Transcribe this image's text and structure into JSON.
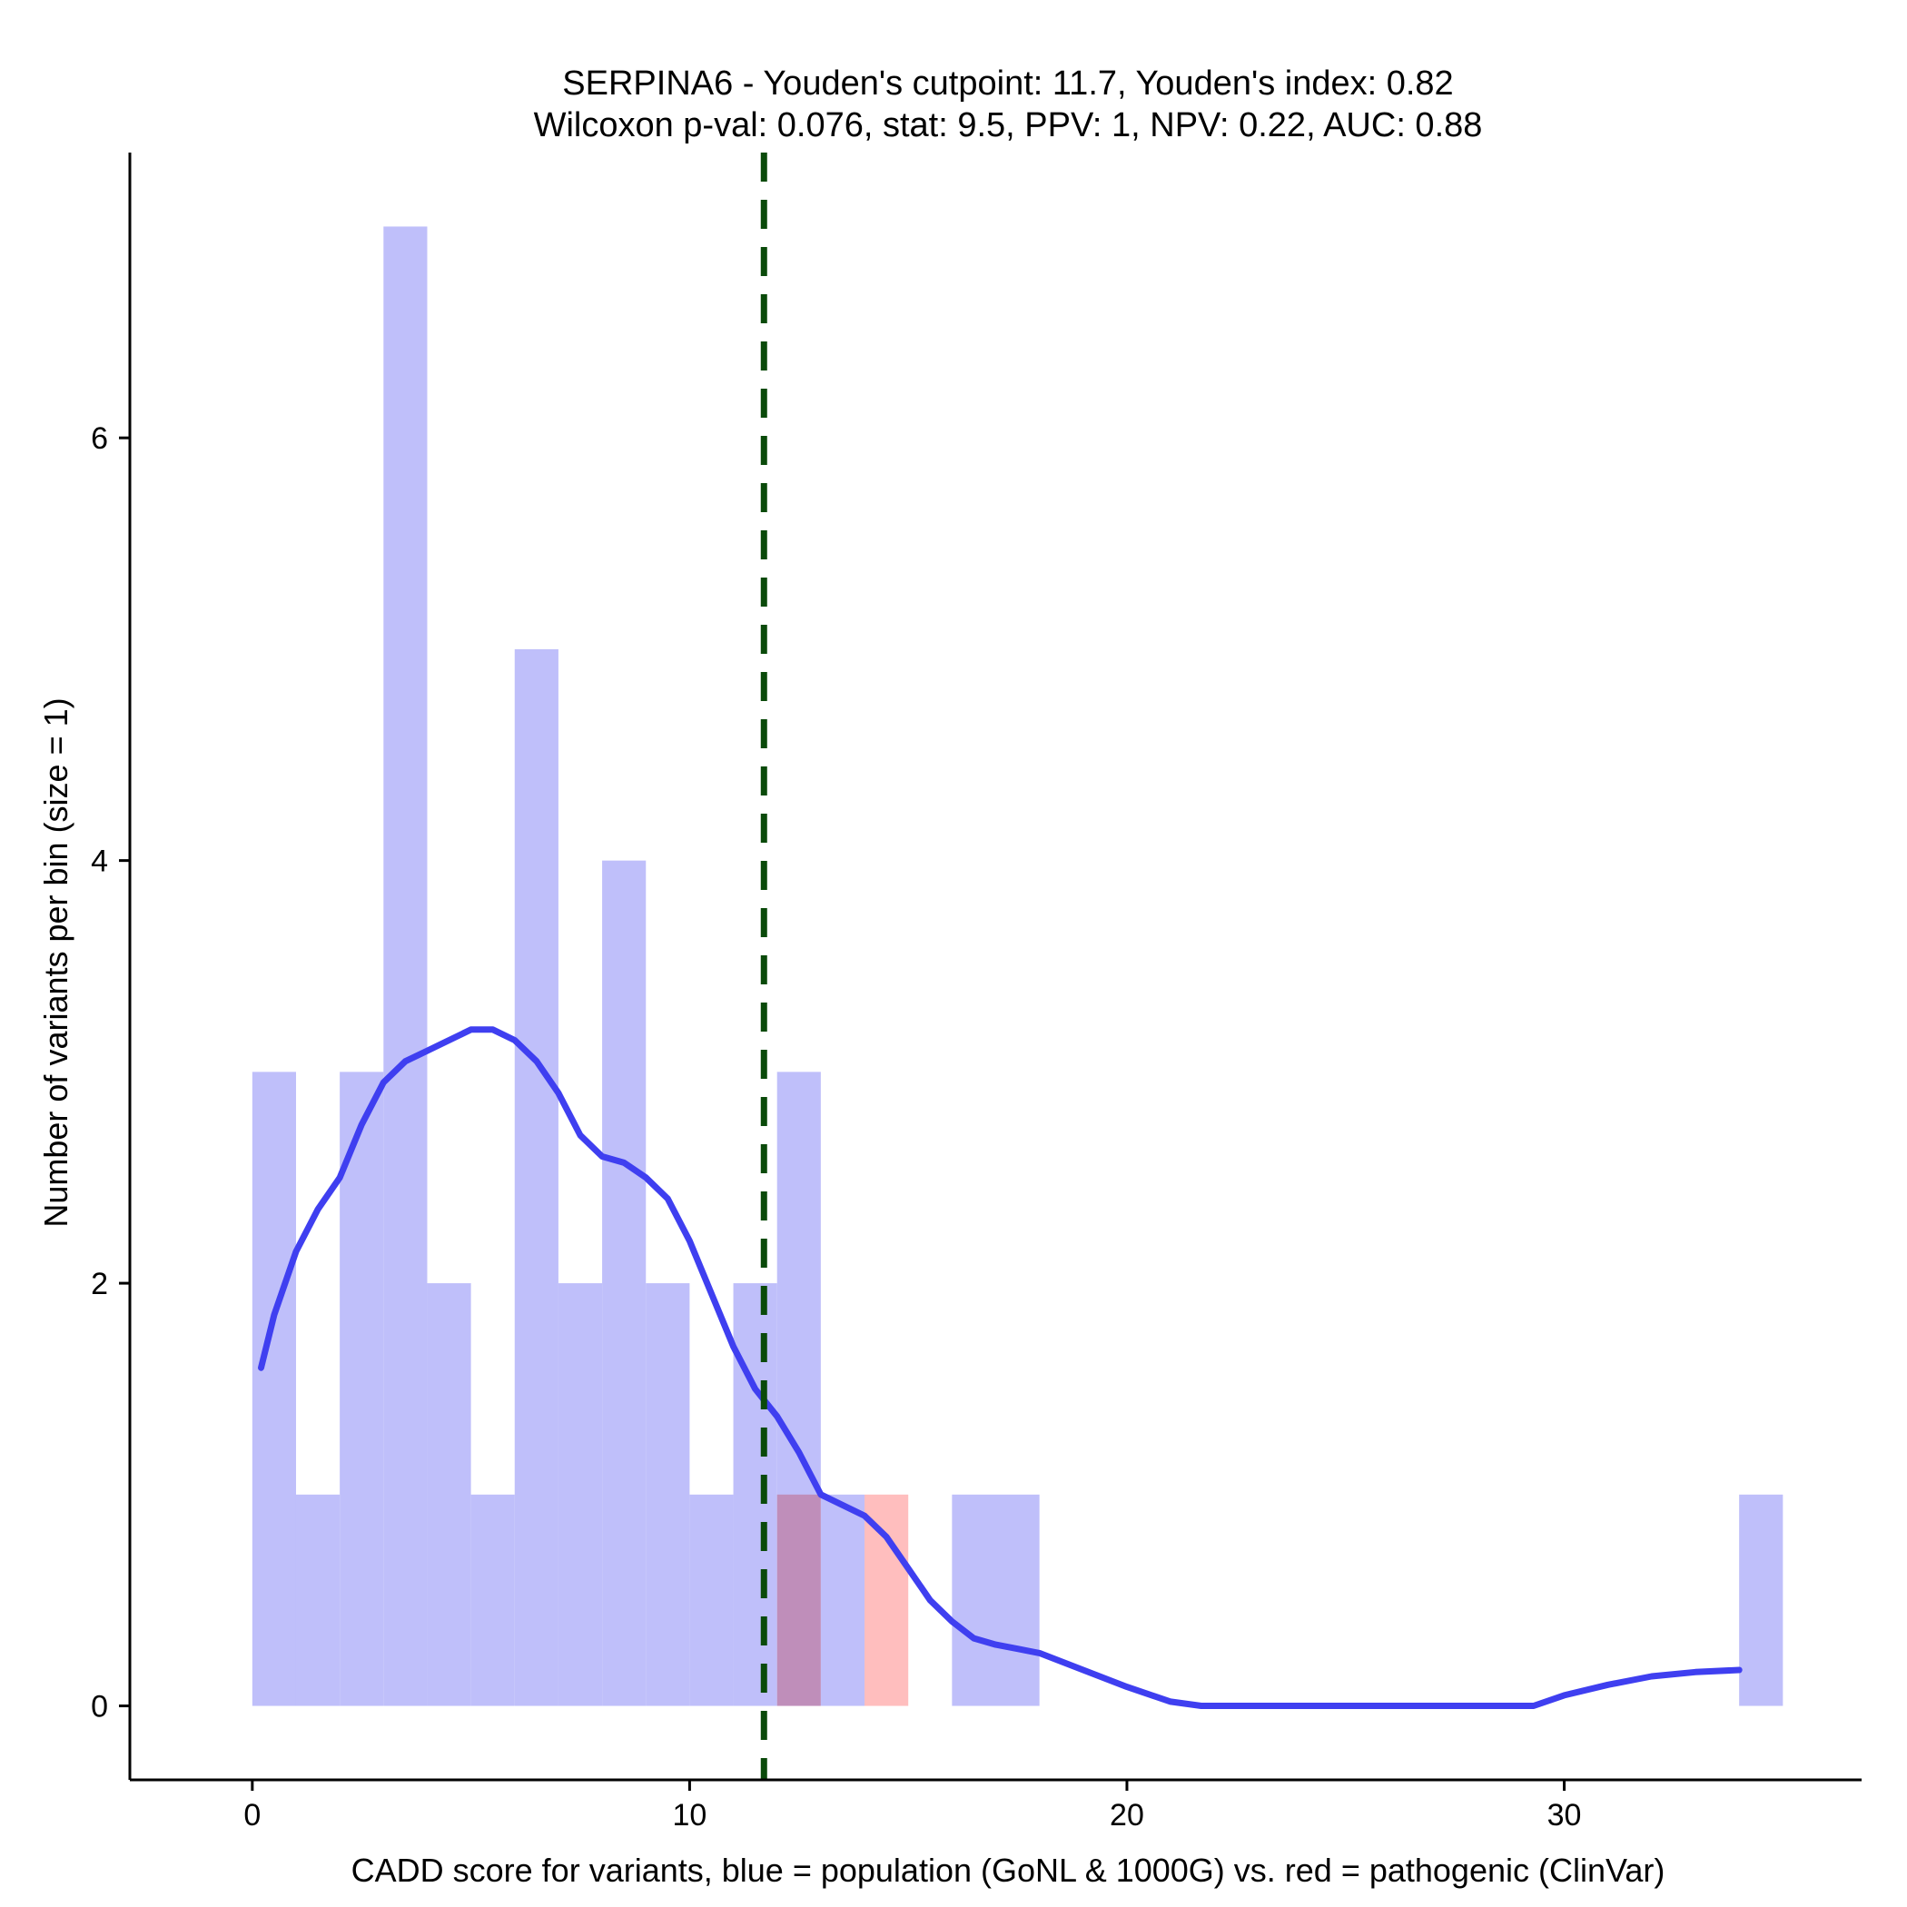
{
  "chart_data": {
    "type": "bar",
    "title_line1": "SERPINA6 - Youden's cutpoint: 11.7, Youden's index: 0.82",
    "title_line2": "Wilcoxon p-val: 0.076, stat: 9.5, PPV: 1, NPV: 0.22, AUC: 0.88",
    "xlabel": "CADD score for variants, blue = population (GoNL & 1000G) vs. red = pathogenic (ClinVar)",
    "ylabel": "Number of variants per bin (size = 1)",
    "xlim": [
      -2.8,
      36.8
    ],
    "ylim": [
      -0.35,
      7.35
    ],
    "xticks": [
      0,
      10,
      20,
      30
    ],
    "yticks": [
      0,
      2,
      4,
      6
    ],
    "bin_size": 1,
    "series": [
      {
        "name": "population (GoNL & 1000G)",
        "color": "#bfbffa",
        "bins": [
          {
            "x0": 0,
            "count": 3
          },
          {
            "x0": 1,
            "count": 1
          },
          {
            "x0": 2,
            "count": 3
          },
          {
            "x0": 3,
            "count": 7
          },
          {
            "x0": 4,
            "count": 2
          },
          {
            "x0": 5,
            "count": 1
          },
          {
            "x0": 6,
            "count": 5
          },
          {
            "x0": 7,
            "count": 2
          },
          {
            "x0": 8,
            "count": 4
          },
          {
            "x0": 9,
            "count": 2
          },
          {
            "x0": 10,
            "count": 1
          },
          {
            "x0": 11,
            "count": 2
          },
          {
            "x0": 12,
            "count": 3
          },
          {
            "x0": 13,
            "count": 1
          },
          {
            "x0": 16,
            "count": 1
          },
          {
            "x0": 17,
            "count": 1
          },
          {
            "x0": 34,
            "count": 1
          }
        ]
      },
      {
        "name": "pathogenic (ClinVar)",
        "color": "#ffb3b3",
        "bins": [
          {
            "x0": 12,
            "count": 1
          },
          {
            "x0": 14,
            "count": 1
          }
        ]
      }
    ],
    "density_curve": {
      "name": "population density (scaled)",
      "color": "#3f3ff0",
      "x": [
        0.2,
        0.5,
        1,
        1.5,
        2,
        2.5,
        3,
        3.5,
        4,
        4.5,
        5,
        5.5,
        6,
        6.5,
        7,
        7.5,
        8,
        8.5,
        9,
        9.5,
        10,
        10.5,
        11,
        11.5,
        12,
        12.5,
        13,
        13.5,
        14,
        14.5,
        15,
        15.5,
        16,
        16.5,
        17,
        17.5,
        18,
        19,
        20,
        21,
        21.7,
        23,
        25,
        27,
        29.3,
        30,
        31,
        32,
        33,
        34
      ],
      "y": [
        1.6,
        1.85,
        2.15,
        2.35,
        2.5,
        2.75,
        2.95,
        3.05,
        3.1,
        3.15,
        3.2,
        3.2,
        3.15,
        3.05,
        2.9,
        2.7,
        2.6,
        2.57,
        2.5,
        2.4,
        2.2,
        1.95,
        1.7,
        1.5,
        1.37,
        1.2,
        1.0,
        0.95,
        0.9,
        0.8,
        0.65,
        0.5,
        0.4,
        0.32,
        0.29,
        0.27,
        0.25,
        0.17,
        0.09,
        0.02,
        0.0,
        0.0,
        0.0,
        0.0,
        0.0,
        0.05,
        0.1,
        0.14,
        0.16,
        0.17
      ]
    },
    "cutpoint": {
      "label": "Youden's cutpoint",
      "value": 11.7,
      "color": "#0a4a0a"
    }
  }
}
